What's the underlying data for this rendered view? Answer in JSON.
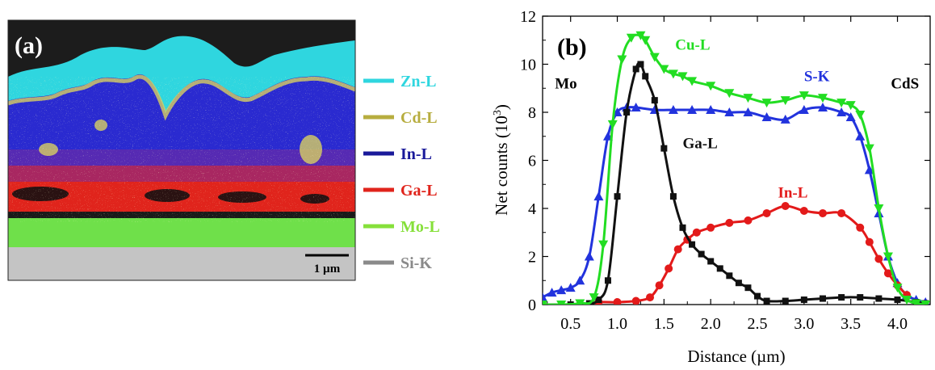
{
  "panel_a": {
    "label": "(a)",
    "scale_bar": "1 µm",
    "legend": [
      {
        "label": "Zn-L",
        "color": "#2fd6df"
      },
      {
        "label": "Cd-L",
        "color": "#b7ad3f"
      },
      {
        "label": "In-L",
        "color": "#1a1a9a"
      },
      {
        "label": "Ga-L",
        "color": "#e0241c"
      },
      {
        "label": "Mo-L",
        "color": "#86e03a"
      },
      {
        "label": "Si-K",
        "color": "#8a8a8a"
      }
    ],
    "layer_colors": {
      "Zn": "#2fd6df",
      "In": "#2a2ad0",
      "Ga": "#e0241c",
      "Mo": "#6fe04a",
      "Si": "#c4c4c4",
      "Cd": "#d8d060",
      "top": "#1c1c1c"
    }
  },
  "chart_data": {
    "type": "line",
    "panel_label": "(b)",
    "xlabel": "Distance (µm)",
    "ylabel": "Net counts (10",
    "ylabel_sup": "3",
    "ylabel_end": ")",
    "xlim": [
      0.2,
      4.35
    ],
    "ylim": [
      0,
      12
    ],
    "xticks": [
      "0.5",
      "1.0",
      "1.5",
      "2.0",
      "2.5",
      "3.0",
      "3.5",
      "4.0"
    ],
    "xtick_values": [
      0.5,
      1.0,
      1.5,
      2.0,
      2.5,
      3.0,
      3.5,
      4.0
    ],
    "yticks": [
      "0",
      "2",
      "4",
      "6",
      "8",
      "10",
      "12"
    ],
    "ytick_values": [
      0,
      2,
      4,
      6,
      8,
      10,
      12
    ],
    "annotations": [
      {
        "text": "Mo",
        "x": 0.45,
        "y": 9.0
      },
      {
        "text": "CdS",
        "x": 4.08,
        "y": 9.0
      }
    ],
    "series": [
      {
        "name": "Cu-L",
        "color": "#22dd22",
        "marker": "triangle-down",
        "label_pos": [
          1.62,
          10.6
        ],
        "x": [
          0.2,
          0.4,
          0.6,
          0.75,
          0.85,
          0.95,
          1.05,
          1.15,
          1.25,
          1.3,
          1.4,
          1.5,
          1.6,
          1.7,
          1.8,
          2.0,
          2.2,
          2.4,
          2.6,
          2.8,
          3.0,
          3.2,
          3.4,
          3.5,
          3.6,
          3.7,
          3.8,
          3.9,
          4.0,
          4.1,
          4.2,
          4.3
        ],
        "y": [
          0.0,
          0.0,
          0.05,
          0.3,
          2.5,
          7.5,
          10.2,
          11.1,
          11.2,
          11.0,
          10.3,
          9.8,
          9.6,
          9.5,
          9.3,
          9.1,
          8.8,
          8.6,
          8.4,
          8.5,
          8.7,
          8.6,
          8.4,
          8.3,
          7.9,
          6.5,
          4.0,
          2.0,
          0.7,
          0.2,
          0.05,
          0.0
        ]
      },
      {
        "name": "S-K",
        "color": "#2233dd",
        "marker": "triangle-up",
        "label_pos": [
          3.0,
          9.3
        ],
        "x": [
          0.2,
          0.3,
          0.4,
          0.5,
          0.6,
          0.7,
          0.8,
          0.9,
          1.0,
          1.1,
          1.2,
          1.4,
          1.6,
          1.8,
          2.0,
          2.2,
          2.4,
          2.6,
          2.8,
          3.0,
          3.2,
          3.4,
          3.5,
          3.6,
          3.7,
          3.8,
          3.9,
          4.0,
          4.1,
          4.2,
          4.3
        ],
        "y": [
          0.3,
          0.5,
          0.6,
          0.7,
          1.0,
          2.0,
          4.5,
          7.0,
          8.0,
          8.2,
          8.2,
          8.1,
          8.1,
          8.1,
          8.1,
          8.0,
          8.0,
          7.8,
          7.7,
          8.1,
          8.2,
          8.0,
          7.8,
          7.0,
          5.6,
          3.8,
          2.0,
          0.9,
          0.4,
          0.2,
          0.1
        ]
      },
      {
        "name": "Ga-L",
        "color": "#111111",
        "marker": "square",
        "label_pos": [
          1.7,
          6.5
        ],
        "x": [
          0.2,
          0.5,
          0.7,
          0.8,
          0.9,
          1.0,
          1.1,
          1.2,
          1.25,
          1.3,
          1.4,
          1.5,
          1.6,
          1.7,
          1.8,
          1.9,
          2.0,
          2.1,
          2.2,
          2.3,
          2.4,
          2.5,
          2.6,
          2.8,
          3.0,
          3.2,
          3.4,
          3.6,
          3.8,
          4.0,
          4.2,
          4.3
        ],
        "y": [
          0.0,
          0.0,
          0.05,
          0.2,
          1.0,
          4.5,
          8.0,
          9.8,
          10.0,
          9.5,
          8.5,
          6.5,
          4.5,
          3.2,
          2.5,
          2.1,
          1.8,
          1.5,
          1.2,
          0.9,
          0.7,
          0.35,
          0.15,
          0.15,
          0.2,
          0.25,
          0.3,
          0.3,
          0.25,
          0.2,
          0.1,
          0.05
        ]
      },
      {
        "name": "In-L",
        "color": "#e31a1a",
        "marker": "circle",
        "label_pos": [
          2.72,
          4.45
        ],
        "x": [
          0.2,
          0.6,
          0.8,
          1.0,
          1.2,
          1.35,
          1.45,
          1.55,
          1.65,
          1.75,
          1.85,
          2.0,
          2.2,
          2.4,
          2.6,
          2.8,
          3.0,
          3.2,
          3.4,
          3.6,
          3.7,
          3.8,
          3.9,
          4.0,
          4.1
        ],
        "y": [
          0.0,
          0.0,
          0.1,
          0.1,
          0.15,
          0.3,
          0.8,
          1.5,
          2.3,
          2.7,
          3.0,
          3.2,
          3.4,
          3.5,
          3.8,
          4.1,
          3.9,
          3.8,
          3.8,
          3.2,
          2.6,
          1.9,
          1.3,
          0.8,
          0.4
        ]
      }
    ]
  }
}
